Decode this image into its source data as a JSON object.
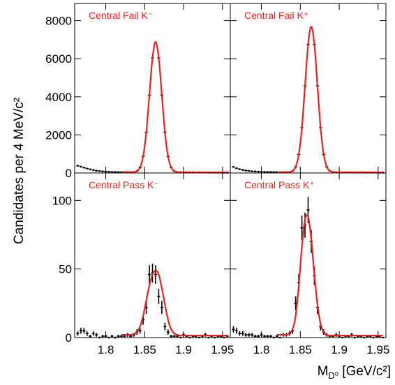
{
  "chart_data": [
    {
      "type": "errorbar",
      "title": "Central Fail K⁻",
      "ylabel": "Candidates per 4 MeV/c²",
      "x": [
        1.764,
        1.768,
        1.772,
        1.776,
        1.78,
        1.784,
        1.788,
        1.792,
        1.796,
        1.8,
        1.804,
        1.808,
        1.812,
        1.816,
        1.82,
        1.824,
        1.828,
        1.832,
        1.836,
        1.84,
        1.844,
        1.848,
        1.852,
        1.856,
        1.86,
        1.864,
        1.868,
        1.872,
        1.876,
        1.88,
        1.884,
        1.888,
        1.892,
        1.896,
        1.9,
        1.904,
        1.908,
        1.912,
        1.916,
        1.92,
        1.924,
        1.928,
        1.932,
        1.936,
        1.94,
        1.944,
        1.948,
        1.952,
        1.956
      ],
      "values": [
        380,
        330,
        280,
        230,
        190,
        150,
        120,
        100,
        80,
        70,
        60,
        55,
        50,
        50,
        45,
        45,
        45,
        40,
        46,
        95,
        290,
        870,
        2130,
        4090,
        6040,
        6850,
        6040,
        4090,
        2130,
        870,
        290,
        95,
        45,
        40,
        40,
        35,
        35,
        35,
        30,
        30,
        30,
        30,
        25,
        25,
        25,
        20,
        20,
        20,
        20
      ],
      "fit_x": [
        1.82,
        1.824,
        1.828,
        1.832,
        1.836,
        1.84,
        1.844,
        1.848,
        1.852,
        1.856,
        1.86,
        1.864,
        1.868,
        1.872,
        1.876,
        1.88,
        1.884,
        1.888,
        1.892,
        1.896,
        1.9,
        1.904,
        1.908,
        1.912,
        1.916,
        1.92,
        1.924,
        1.928,
        1.932,
        1.936,
        1.94,
        1.944,
        1.948,
        1.952,
        1.956
      ],
      "fit_values": [
        40,
        40,
        40,
        40,
        42,
        100,
        295,
        875,
        2135,
        4090,
        6050,
        6880,
        6050,
        4090,
        2135,
        875,
        295,
        100,
        50,
        30,
        30,
        30,
        30,
        30,
        30,
        30,
        30,
        30,
        30,
        30,
        30,
        30,
        30,
        30,
        30
      ],
      "xlim": [
        1.76,
        1.96
      ],
      "ylim": [
        0,
        8900
      ],
      "xticks": [
        1.8,
        1.85,
        1.9,
        1.95
      ],
      "yticks": [
        0,
        2000,
        4000,
        6000,
        8000
      ],
      "xtick_labels": false,
      "ytick_labels": true,
      "color": "#000000",
      "fit_color": "#e8231f"
    },
    {
      "type": "errorbar",
      "title": "Central Fail K⁺",
      "x": [
        1.764,
        1.768,
        1.772,
        1.776,
        1.78,
        1.784,
        1.788,
        1.792,
        1.796,
        1.8,
        1.804,
        1.808,
        1.812,
        1.816,
        1.82,
        1.824,
        1.828,
        1.832,
        1.836,
        1.84,
        1.844,
        1.848,
        1.852,
        1.856,
        1.86,
        1.864,
        1.868,
        1.872,
        1.876,
        1.88,
        1.884,
        1.888,
        1.892,
        1.896,
        1.9,
        1.904,
        1.908,
        1.912,
        1.916,
        1.92,
        1.924,
        1.928,
        1.932,
        1.936,
        1.94,
        1.944,
        1.948,
        1.952,
        1.956
      ],
      "values": [
        320,
        250,
        200,
        160,
        130,
        110,
        90,
        80,
        70,
        60,
        55,
        50,
        50,
        45,
        45,
        40,
        40,
        40,
        45,
        105,
        320,
        970,
        2380,
        4570,
        6750,
        7650,
        6750,
        4570,
        2380,
        970,
        320,
        105,
        50,
        40,
        40,
        35,
        35,
        35,
        30,
        30,
        30,
        30,
        30,
        25,
        25,
        25,
        25,
        20,
        20
      ],
      "fit_x": [
        1.82,
        1.824,
        1.828,
        1.832,
        1.836,
        1.84,
        1.844,
        1.848,
        1.852,
        1.856,
        1.86,
        1.864,
        1.868,
        1.872,
        1.876,
        1.88,
        1.884,
        1.888,
        1.892,
        1.896,
        1.9,
        1.904,
        1.908,
        1.912,
        1.916,
        1.92,
        1.924,
        1.928,
        1.932,
        1.936,
        1.94,
        1.944,
        1.948,
        1.952,
        1.956
      ],
      "fit_values": [
        40,
        40,
        40,
        40,
        42,
        110,
        325,
        975,
        2385,
        4575,
        6760,
        7680,
        6760,
        4575,
        2385,
        975,
        325,
        110,
        50,
        35,
        35,
        35,
        35,
        35,
        35,
        35,
        35,
        35,
        35,
        35,
        35,
        35,
        35,
        35,
        35
      ],
      "xlim": [
        1.76,
        1.96
      ],
      "ylim": [
        0,
        8900
      ],
      "xticks": [
        1.8,
        1.85,
        1.9,
        1.95
      ],
      "yticks": [
        0,
        2000,
        4000,
        6000,
        8000
      ],
      "xtick_labels": false,
      "ytick_labels": false,
      "color": "#000000",
      "fit_color": "#e8231f"
    },
    {
      "type": "errorbar",
      "title": "Central Pass K⁻",
      "x": [
        1.764,
        1.768,
        1.772,
        1.776,
        1.78,
        1.784,
        1.788,
        1.792,
        1.796,
        1.8,
        1.804,
        1.808,
        1.812,
        1.816,
        1.82,
        1.824,
        1.828,
        1.832,
        1.836,
        1.84,
        1.844,
        1.848,
        1.852,
        1.856,
        1.86,
        1.864,
        1.868,
        1.872,
        1.876,
        1.88,
        1.884,
        1.888,
        1.892,
        1.896,
        1.9,
        1.904,
        1.908,
        1.912,
        1.916,
        1.92,
        1.924,
        1.928,
        1.932,
        1.936,
        1.94,
        1.944,
        1.948,
        1.952,
        1.956
      ],
      "values": [
        3,
        5,
        5,
        3,
        1,
        3,
        2,
        0,
        1,
        1,
        0,
        1,
        0,
        1,
        1,
        1,
        2,
        1,
        2,
        4,
        5,
        13,
        22,
        46,
        47,
        46,
        30,
        22,
        8,
        4,
        1,
        1,
        1,
        0,
        2,
        1,
        0,
        1,
        1,
        0,
        1,
        2,
        0,
        1,
        0,
        1,
        1,
        0,
        1
      ],
      "errors": [
        1.7,
        2.2,
        2.2,
        1.7,
        1,
        1.7,
        1.4,
        0,
        1,
        1,
        0,
        1,
        0,
        1,
        1,
        1,
        1.4,
        1,
        1.4,
        2,
        2.2,
        3.6,
        4.7,
        6.8,
        6.9,
        6.8,
        5.5,
        4.7,
        2.8,
        2,
        1,
        1,
        1,
        0,
        1.4,
        1,
        0,
        1,
        1,
        0,
        1,
        1.4,
        0,
        1,
        0,
        1,
        1,
        0,
        1
      ],
      "fit_x": [
        1.82,
        1.824,
        1.828,
        1.832,
        1.836,
        1.84,
        1.844,
        1.848,
        1.852,
        1.856,
        1.86,
        1.864,
        1.868,
        1.872,
        1.876,
        1.88,
        1.884,
        1.888,
        1.892,
        1.896,
        1.9,
        1.904,
        1.908,
        1.912,
        1.916,
        1.92,
        1.924,
        1.928,
        1.932,
        1.936,
        1.94,
        1.944,
        1.948,
        1.952,
        1.956
      ],
      "fit_values": [
        2,
        2,
        2,
        2,
        2.5,
        4,
        8,
        16,
        27,
        38,
        46,
        49,
        46,
        36,
        24,
        13,
        6,
        3,
        2,
        1.5,
        1.5,
        1.5,
        1.5,
        1.5,
        1.5,
        1.5,
        1.5,
        1.5,
        1.5,
        1.5,
        1.5,
        1.5,
        1.5,
        1.5,
        1.5
      ],
      "xlim": [
        1.76,
        1.96
      ],
      "ylim": [
        0,
        120
      ],
      "xticks": [
        1.8,
        1.85,
        1.9,
        1.95
      ],
      "yticks": [
        0,
        50,
        100
      ],
      "xtick_labels": true,
      "ytick_labels": true,
      "color": "#000000",
      "fit_color": "#e8231f"
    },
    {
      "type": "errorbar",
      "title": "Central Pass K⁺",
      "xlabel": [
        "M",
        "D⁰",
        " [GeV/c²]"
      ],
      "x": [
        1.764,
        1.768,
        1.772,
        1.776,
        1.78,
        1.784,
        1.788,
        1.792,
        1.796,
        1.8,
        1.804,
        1.808,
        1.812,
        1.816,
        1.82,
        1.824,
        1.828,
        1.832,
        1.836,
        1.84,
        1.844,
        1.848,
        1.852,
        1.856,
        1.86,
        1.864,
        1.868,
        1.872,
        1.876,
        1.88,
        1.884,
        1.888,
        1.892,
        1.896,
        1.9,
        1.904,
        1.908,
        1.912,
        1.916,
        1.92,
        1.924,
        1.928,
        1.932,
        1.936,
        1.94,
        1.944,
        1.948,
        1.952,
        1.956
      ],
      "values": [
        6,
        5,
        3,
        3,
        2,
        2,
        2,
        1,
        1,
        2,
        1,
        1,
        1,
        0,
        1,
        0,
        2,
        2,
        3,
        5,
        25,
        40,
        80,
        82,
        93,
        70,
        45,
        22,
        8,
        4,
        2,
        1,
        1,
        2,
        1,
        0,
        1,
        1,
        2,
        0,
        1,
        1,
        0,
        1,
        1,
        0,
        1,
        1,
        0
      ],
      "errors": [
        2.4,
        2.2,
        1.7,
        1.7,
        1.4,
        1.4,
        1.4,
        1,
        1,
        1.4,
        1,
        1,
        1,
        0,
        1,
        0,
        1.4,
        1.4,
        1.7,
        2.2,
        5,
        6.3,
        8.9,
        9.1,
        9.6,
        8.4,
        6.7,
        4.7,
        2.8,
        2,
        1.4,
        1,
        1,
        1.4,
        1,
        0,
        1,
        1,
        1.4,
        0,
        1,
        1,
        0,
        1,
        1,
        0,
        1,
        1,
        0
      ],
      "fit_x": [
        1.82,
        1.824,
        1.828,
        1.832,
        1.836,
        1.84,
        1.844,
        1.848,
        1.852,
        1.856,
        1.86,
        1.864,
        1.868,
        1.872,
        1.876,
        1.88,
        1.884,
        1.888,
        1.892,
        1.896,
        1.9,
        1.904,
        1.908,
        1.912,
        1.916,
        1.92,
        1.924,
        1.928,
        1.932,
        1.936,
        1.94,
        1.944,
        1.948,
        1.952,
        1.956
      ],
      "fit_values": [
        2,
        2,
        2,
        2,
        3,
        6,
        16,
        38,
        66,
        86,
        88,
        72,
        46,
        24,
        10,
        4,
        2,
        1.5,
        1.5,
        1.5,
        1.5,
        1.5,
        1.5,
        1.5,
        1.5,
        1.5,
        1.5,
        1.5,
        1.5,
        1.5,
        1.5,
        1.5,
        1.5,
        1.5,
        1.5
      ],
      "xlim": [
        1.76,
        1.96
      ],
      "ylim": [
        0,
        120
      ],
      "xticks": [
        1.8,
        1.85,
        1.9,
        1.95
      ],
      "yticks": [
        0,
        50,
        100
      ],
      "xtick_labels": true,
      "ytick_labels": false,
      "color": "#000000",
      "fit_color": "#e8231f"
    }
  ]
}
